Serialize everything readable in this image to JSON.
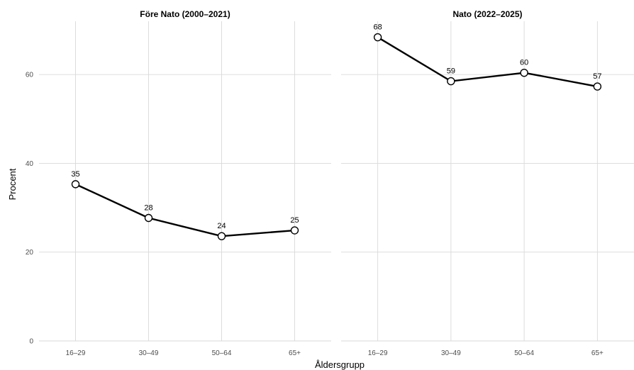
{
  "chart_data": {
    "type": "line",
    "xlabel": "Åldersgrupp",
    "ylabel": "Procent",
    "ylim": [
      0,
      72
    ],
    "yticks": [
      "0",
      "20",
      "40",
      "60"
    ],
    "categories": [
      "16–29",
      "30–49",
      "50–64",
      "65+"
    ],
    "grid": true,
    "legend": "none",
    "colors": {
      "line": "#000000",
      "point_fill": "#ffffff",
      "grid": "#d9d9d9"
    },
    "panels": [
      {
        "title": "Före Nato (2000–2021)",
        "values": [
          35.3,
          27.7,
          23.6,
          24.9
        ],
        "labels": [
          "35",
          "28",
          "24",
          "25"
        ]
      },
      {
        "title": "Nato (2022–2025)",
        "values": [
          68.4,
          58.5,
          60.4,
          57.3
        ],
        "labels": [
          "68",
          "59",
          "60",
          "57"
        ]
      }
    ]
  }
}
